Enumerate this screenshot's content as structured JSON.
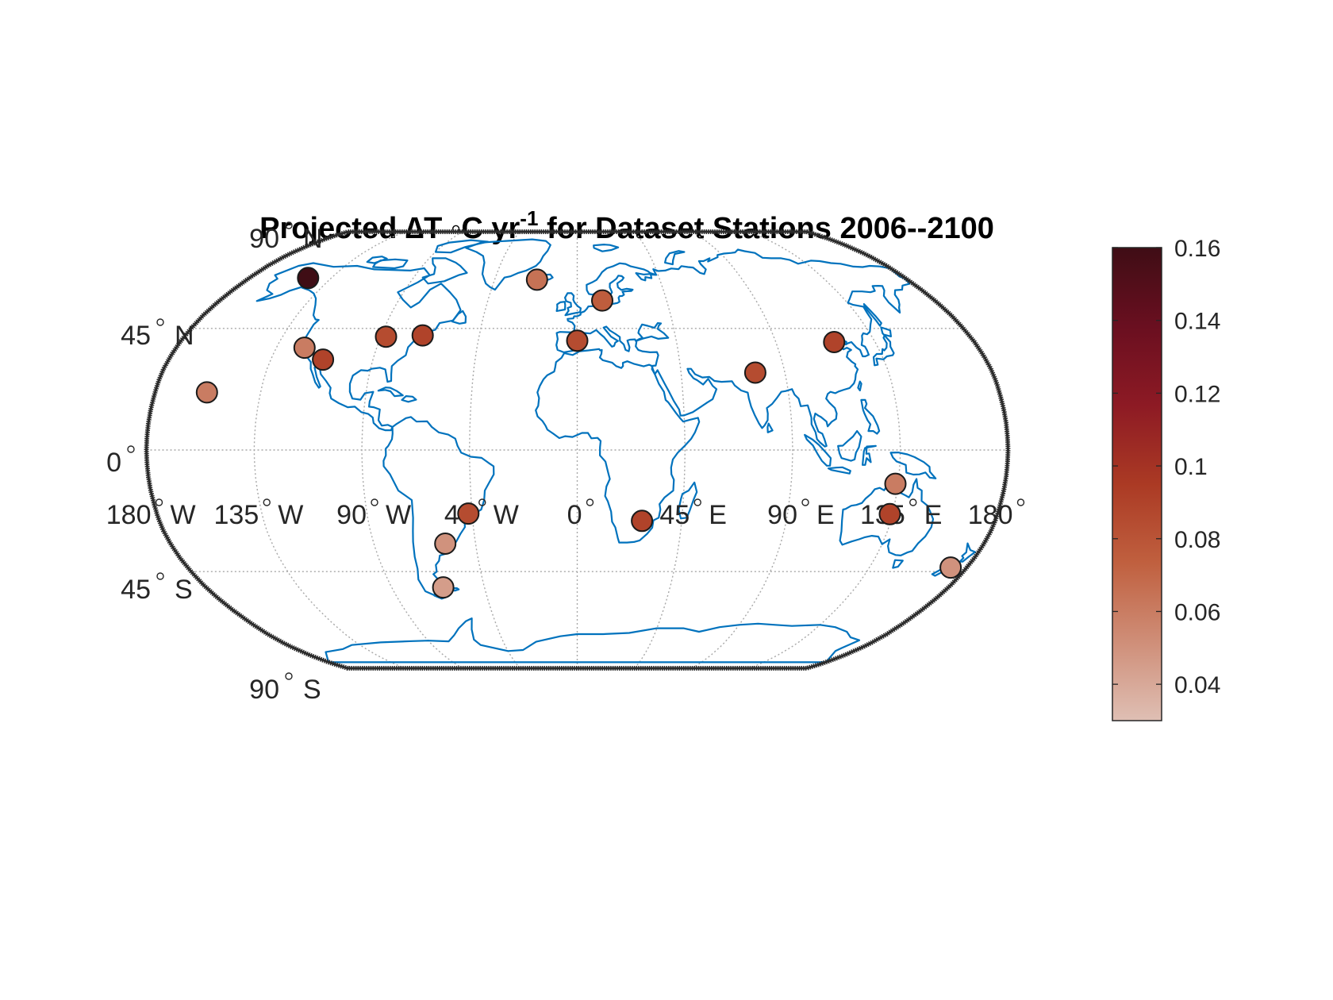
{
  "title": {
    "part1": "Projected ",
    "delta": "∆",
    "part2": "T ◦C yr",
    "sup": "-1",
    "part3": " for Dataset Stations 2006--2100"
  },
  "lat_labels": [
    {
      "lat": 90,
      "num": "90",
      "hem": "N"
    },
    {
      "lat": 45,
      "num": "45",
      "hem": "N"
    },
    {
      "lat": 0,
      "num": "0",
      "hem": ""
    },
    {
      "lat": -45,
      "num": "45",
      "hem": "S"
    },
    {
      "lat": -90,
      "num": "90",
      "hem": "S"
    }
  ],
  "lon_labels": [
    {
      "lon": -180,
      "num": "180",
      "hem": "W"
    },
    {
      "lon": -135,
      "num": "135",
      "hem": "W"
    },
    {
      "lon": -90,
      "num": "90",
      "hem": "W"
    },
    {
      "lon": -45,
      "num": "45",
      "hem": "W"
    },
    {
      "lon": 0,
      "num": "0",
      "hem": ""
    },
    {
      "lon": 45,
      "num": "45",
      "hem": "E"
    },
    {
      "lon": 90,
      "num": "90",
      "hem": "E"
    },
    {
      "lon": 135,
      "num": "135",
      "hem": "E"
    },
    {
      "lon": 180,
      "num": "180",
      "hem": ""
    }
  ],
  "colorbar": {
    "min": 0.03,
    "max": 0.16,
    "ticks": [
      {
        "value": 0.04,
        "label": "0.04"
      },
      {
        "value": 0.06,
        "label": "0.06"
      },
      {
        "value": 0.08,
        "label": "0.08"
      },
      {
        "value": 0.1,
        "label": "0.1"
      },
      {
        "value": 0.12,
        "label": "0.12"
      },
      {
        "value": 0.14,
        "label": "0.14"
      },
      {
        "value": 0.16,
        "label": "0.16"
      }
    ],
    "colors": [
      "#dfbfb4",
      "#cf8e78",
      "#c0603f",
      "#ab3a24",
      "#8d1a24",
      "#6a0f20",
      "#3f0d15"
    ]
  },
  "colors": {
    "coastline": "#0072bd",
    "frame": "#2b2b2b"
  },
  "chart_data": {
    "type": "scatter",
    "projection": "robinson",
    "xlabel": "",
    "ylabel": "",
    "stations": [
      {
        "lon": -147.7,
        "lat": 64.8,
        "value": 0.16
      },
      {
        "lon": -122.4,
        "lat": 37.8,
        "value": 0.06
      },
      {
        "lon": -112.0,
        "lat": 33.4,
        "value": 0.09
      },
      {
        "lon": -157.9,
        "lat": 21.3,
        "value": 0.06
      },
      {
        "lon": -87.6,
        "lat": 41.9,
        "value": 0.085
      },
      {
        "lon": -71.0,
        "lat": 42.4,
        "value": 0.09
      },
      {
        "lon": -21.9,
        "lat": 64.1,
        "value": 0.065
      },
      {
        "lon": 12.6,
        "lat": 55.7,
        "value": 0.075
      },
      {
        "lon": 0.0,
        "lat": 40.4,
        "value": 0.085
      },
      {
        "lon": 116.4,
        "lat": 39.9,
        "value": 0.09
      },
      {
        "lon": 77.2,
        "lat": 28.6,
        "value": 0.085
      },
      {
        "lon": -46.6,
        "lat": -23.5,
        "value": 0.085
      },
      {
        "lon": -58.4,
        "lat": -34.6,
        "value": 0.05
      },
      {
        "lon": -65.0,
        "lat": -51.0,
        "value": 0.045
      },
      {
        "lon": 27.9,
        "lat": -26.2,
        "value": 0.09
      },
      {
        "lon": 133.9,
        "lat": -12.5,
        "value": 0.06
      },
      {
        "lon": 133.9,
        "lat": -23.7,
        "value": 0.09
      },
      {
        "lon": 172.6,
        "lat": -43.5,
        "value": 0.05
      }
    ]
  }
}
